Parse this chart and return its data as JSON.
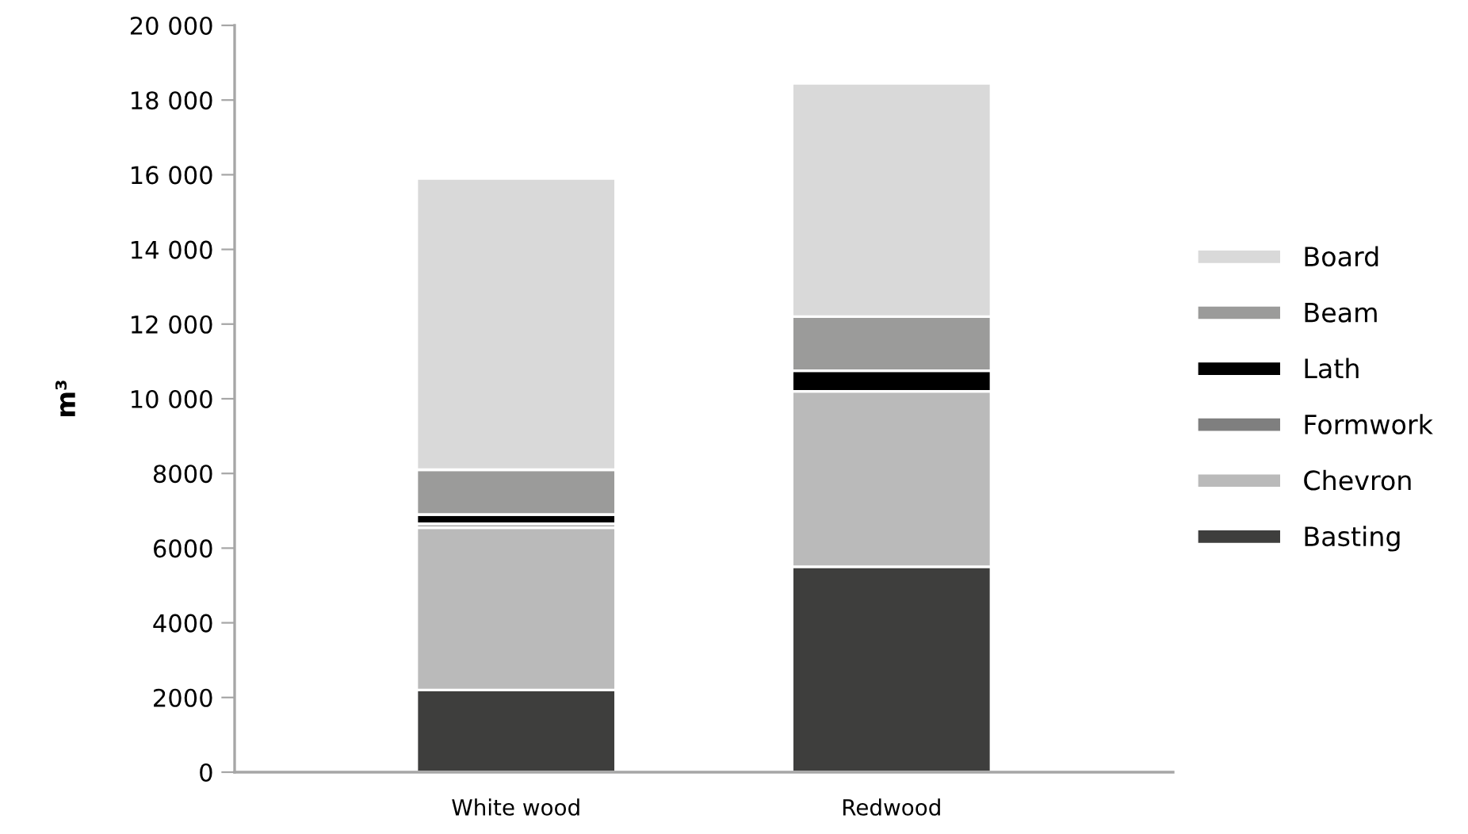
{
  "chart_data": {
    "type": "bar",
    "stacked": true,
    "ylabel": "m³",
    "categories": [
      "White wood",
      "Redwood"
    ],
    "series": [
      {
        "name": "Basting",
        "color": "#3e3e3d",
        "values": [
          2200,
          5500
        ]
      },
      {
        "name": "Chevron",
        "color": "#bababa",
        "values": [
          4350,
          4700
        ]
      },
      {
        "name": "Formwork",
        "color": "#7f7f7f",
        "values": [
          100,
          null
        ]
      },
      {
        "name": "Lath",
        "color": "#000000",
        "values": [
          250,
          550
        ]
      },
      {
        "name": "Beam",
        "color": "#9b9b9a",
        "values": [
          1200,
          1450
        ]
      },
      {
        "name": "Board",
        "color": "#d9d9d9",
        "values": [
          7800,
          6250
        ]
      }
    ],
    "ylim": [
      0,
      20000
    ],
    "yticks": [
      0,
      2000,
      4000,
      6000,
      8000,
      {
        "value": 10000,
        "label": "10 000"
      },
      {
        "value": 12000,
        "label": "12 000"
      },
      {
        "value": 14000,
        "label": "14 000"
      },
      {
        "value": 16000,
        "label": "16 000"
      },
      {
        "value": 18000,
        "label": "18 000"
      },
      {
        "value": 20000,
        "label": "20 000"
      }
    ],
    "grid": false,
    "legend": "right"
  }
}
